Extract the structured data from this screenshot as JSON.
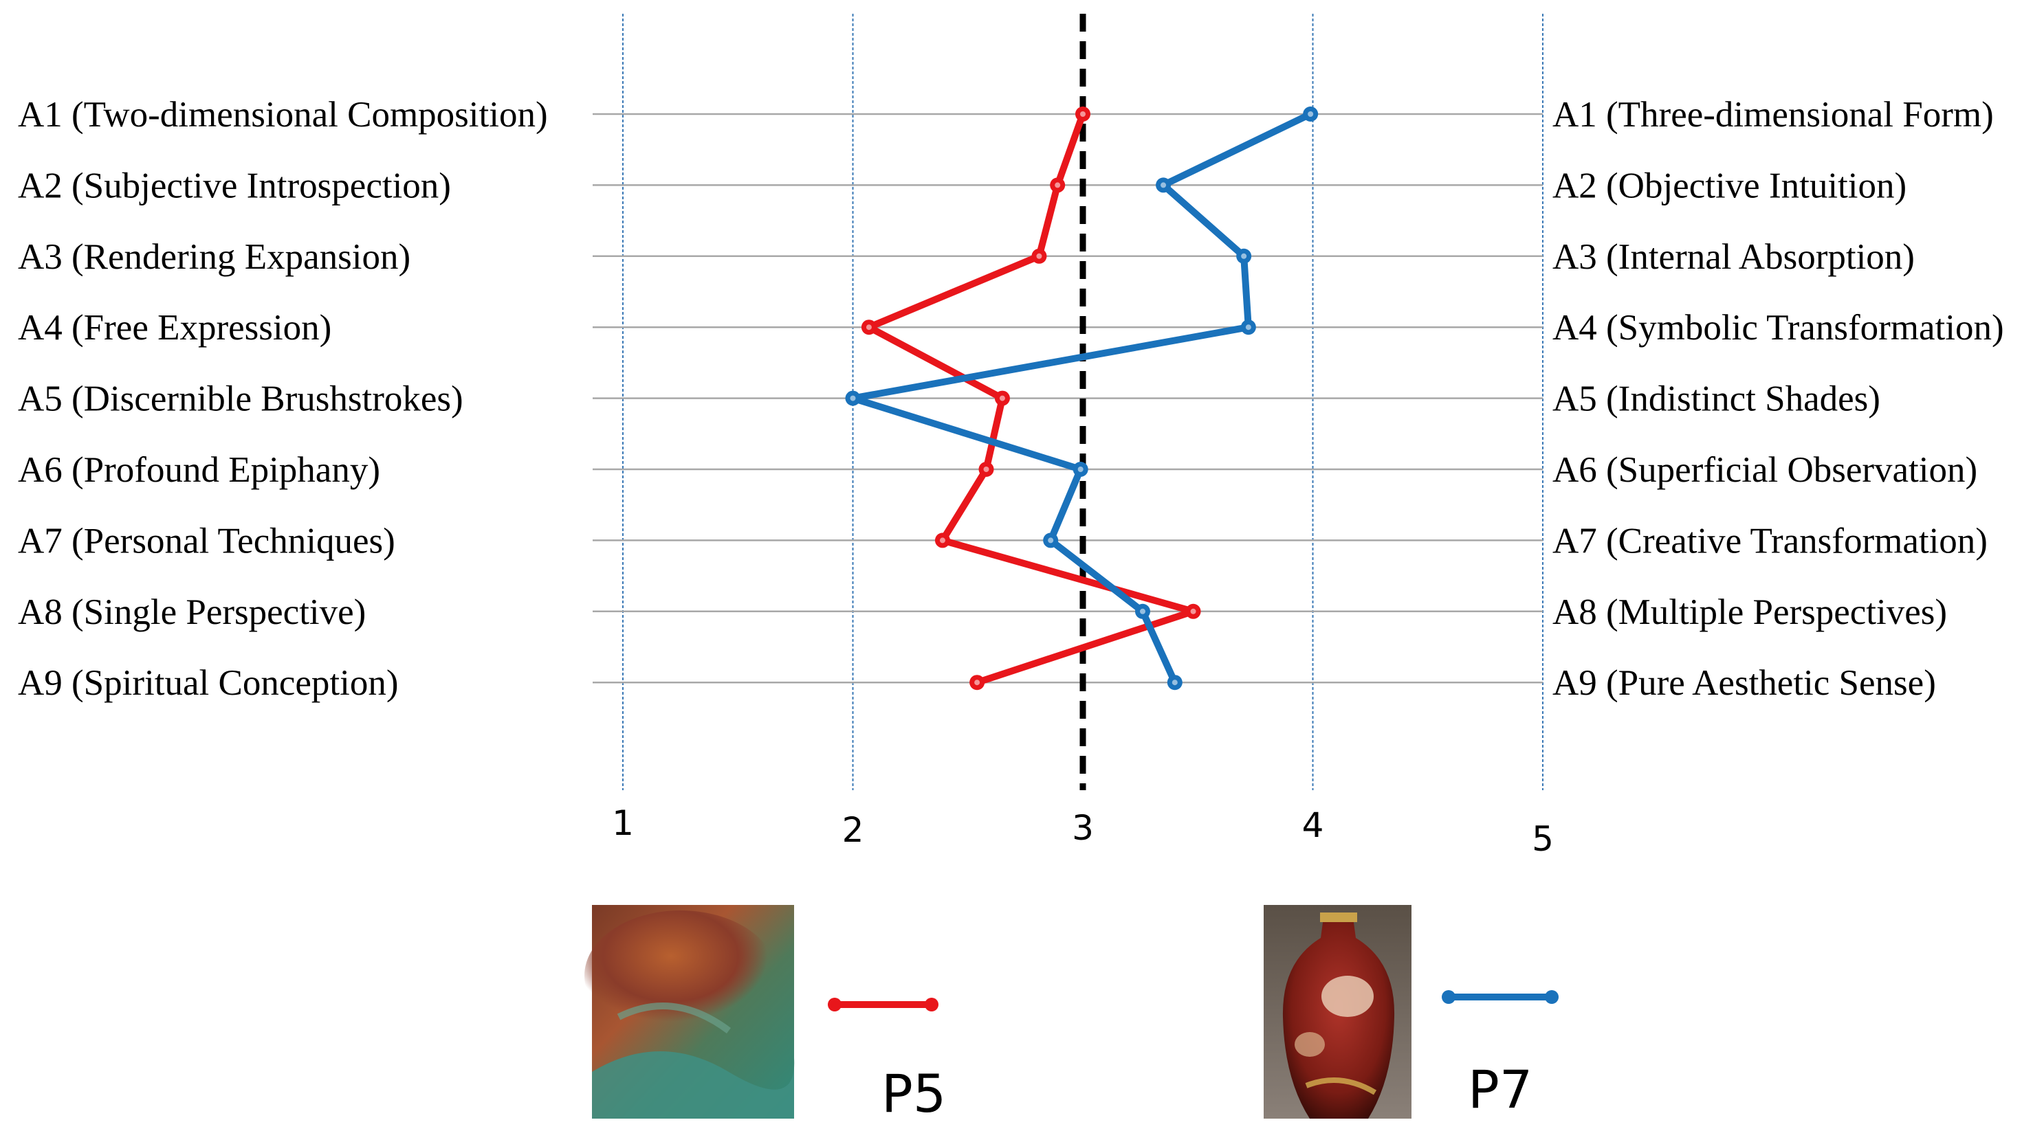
{
  "chart_data": {
    "type": "line",
    "orientation": "horizontal-profile",
    "xlim": [
      1,
      5
    ],
    "x_ticks": [
      "1",
      "2",
      "3",
      "4",
      "5"
    ],
    "midpoint": 3,
    "left_labels": [
      "A1 (Two-dimensional Composition)",
      "A2 (Subjective Introspection)",
      "A3 (Rendering Expansion)",
      "A4 (Free Expression)",
      "A5 (Discernible Brushstrokes)",
      "A6 (Profound Epiphany)",
      "A7 (Personal Techniques)",
      "A8 (Single Perspective)",
      "A9 (Spiritual Conception)"
    ],
    "right_labels": [
      "A1 (Three-dimensional Form)",
      "A2 (Objective Intuition)",
      "A3 (Internal Absorption)",
      "A4 (Symbolic Transformation)",
      "A5 (Indistinct Shades)",
      "A6 (Superficial Observation)",
      "A7 (Creative Transformation)",
      "A8 (Multiple Perspectives)",
      "A9 (Pure Aesthetic Sense)"
    ],
    "series": [
      {
        "name": "P5",
        "color": "#e8161b",
        "values": [
          3.0,
          2.89,
          2.81,
          2.07,
          2.65,
          2.58,
          2.39,
          3.48,
          2.54
        ]
      },
      {
        "name": "P7",
        "color": "#1a72bb",
        "values": [
          3.99,
          3.35,
          3.7,
          3.72,
          2.0,
          2.99,
          2.86,
          3.26,
          3.4
        ]
      }
    ],
    "legend_position": "bottom"
  },
  "colors": {
    "grid_horizontal": "#a8a8a8",
    "grid_vertical": "#3a78b5",
    "midline": "#000000",
    "p5_thumbnail": "#8a4a2e",
    "p7_thumbnail": "#7a2416"
  }
}
